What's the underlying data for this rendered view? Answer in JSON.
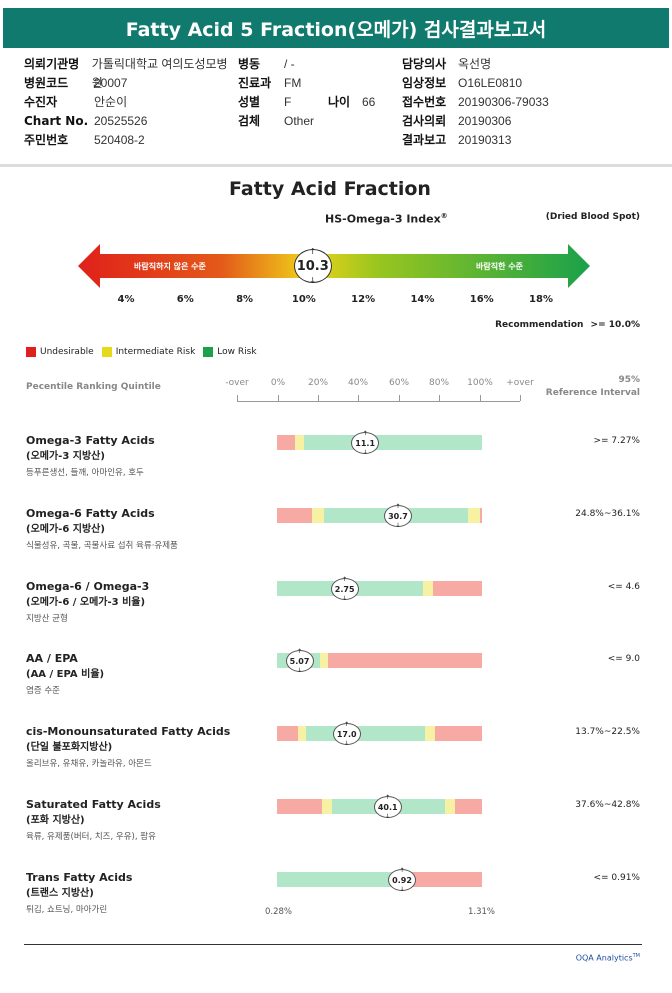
{
  "report_title": "Fatty Acid 5 Fraction(오메가) 검사결과보고서",
  "patient_info": {
    "left": [
      {
        "key": "의뢰기관명",
        "value": "가톨릭대학교 여의도성모병원"
      },
      {
        "key": "병원코드",
        "value": "20007"
      },
      {
        "key": "수진자",
        "value": "안순이"
      },
      {
        "key": "Chart No.",
        "value": "20525526"
      },
      {
        "key": "주민번호",
        "value": "520408-2"
      }
    ],
    "middle": [
      {
        "key": "병동",
        "value": "/ -"
      },
      {
        "key": "진료과",
        "value": "FM"
      },
      {
        "key": "성별",
        "value": "F"
      },
      {
        "key": "검체",
        "value": "Other"
      }
    ],
    "age": {
      "key": "나이",
      "value": "66"
    },
    "right": [
      {
        "key": "담당의사",
        "value": "옥선명"
      },
      {
        "key": "임상정보",
        "value": "O16LE0810"
      },
      {
        "key": "접수번호",
        "value": "20190306-79033"
      },
      {
        "key": "검사의뢰",
        "value": "20190306"
      },
      {
        "key": "결과보고",
        "value": "20190313"
      }
    ]
  },
  "section_title": "Fatty Acid Fraction",
  "index_title": "HS-Omega-3 Index",
  "index_sup": "®",
  "specimen": "(Dried Blood Spot)",
  "index_gauge": {
    "left_label": "바람직하지 않은 수준",
    "right_label": "바람직한 수준",
    "value": "10.3",
    "value_num": 10.3,
    "scale_min": 4,
    "scale_max": 18,
    "ticks": [
      "4%",
      "6%",
      "8%",
      "10%",
      "12%",
      "14%",
      "16%",
      "18%"
    ]
  },
  "recommendation": {
    "label": "Recommendation",
    "value": ">= 10.0%"
  },
  "legend": [
    {
      "label": "Undesirable",
      "color": "#e0201a"
    },
    {
      "label": "Intermediate Risk",
      "color": "#e6d81a"
    },
    {
      "label": "Low Risk",
      "color": "#1aa14a"
    }
  ],
  "percentile": {
    "title": "Pecentile Ranking Quintile",
    "ticks": [
      "-over",
      "0%",
      "20%",
      "40%",
      "60%",
      "80%",
      "100%",
      "+over"
    ],
    "ref_header_1": "95%",
    "ref_header_2": "Reference Interval"
  },
  "colors": {
    "red": "#f7a9a4",
    "yellow": "#f7f1a3",
    "green": "#b2e6c8",
    "header": "#117a6e"
  },
  "fatty_acids": [
    {
      "name": "Omega-3 Fatty Acids",
      "sub": "(오메가-3 지방산)",
      "desc": "등푸른생선, 들깨, 아마인유, 호두",
      "value": "11.1",
      "value_pos": 0.43,
      "ref": ">= 7.27%",
      "segments": [
        {
          "c": "red",
          "w": 0.09
        },
        {
          "c": "yellow",
          "w": 0.04
        },
        {
          "c": "green",
          "w": 0.87
        }
      ]
    },
    {
      "name": "Omega-6 Fatty Acids",
      "sub": "(오메가-6 지방산)",
      "desc": "식물성유, 곡물, 곡물사료 섭취 육류·유제품",
      "value": "30.7",
      "value_pos": 0.59,
      "ref": "24.8%~36.1%",
      "segments": [
        {
          "c": "red",
          "w": 0.17
        },
        {
          "c": "yellow",
          "w": 0.06
        },
        {
          "c": "green",
          "w": 0.7
        },
        {
          "c": "yellow",
          "w": 0.06
        },
        {
          "c": "red",
          "w": 0.01
        }
      ]
    },
    {
      "name": "Omega-6 / Omega-3",
      "sub": "(오메가-6 / 오메가-3 비율)",
      "desc": "지방산 균형",
      "value": "2.75",
      "value_pos": 0.33,
      "ref": "<= 4.6",
      "segments": [
        {
          "c": "green",
          "w": 0.71
        },
        {
          "c": "yellow",
          "w": 0.05
        },
        {
          "c": "red",
          "w": 0.24
        }
      ]
    },
    {
      "name": "AA / EPA",
      "sub": "(AA / EPA 비율)",
      "desc": "염증 수준",
      "value": "5.07",
      "value_pos": 0.11,
      "ref": "<= 9.0",
      "segments": [
        {
          "c": "green",
          "w": 0.21
        },
        {
          "c": "yellow",
          "w": 0.04
        },
        {
          "c": "red",
          "w": 0.75
        }
      ]
    },
    {
      "name": "cis-Monounsaturated Fatty Acids",
      "sub": "(단일 불포화지방산)",
      "desc": "올리브유, 유채유, 카놀라유, 아몬드",
      "value": "17.0",
      "value_pos": 0.34,
      "ref": "13.7%~22.5%",
      "segments": [
        {
          "c": "red",
          "w": 0.1
        },
        {
          "c": "yellow",
          "w": 0.04
        },
        {
          "c": "green",
          "w": 0.58
        },
        {
          "c": "yellow",
          "w": 0.05
        },
        {
          "c": "red",
          "w": 0.23
        }
      ]
    },
    {
      "name": "Saturated Fatty Acids",
      "sub": "(포화 지방산)",
      "desc": "육류, 유제품(버터, 치즈, 우유), 팜유",
      "value": "40.1",
      "value_pos": 0.54,
      "ref": "37.6%~42.8%",
      "segments": [
        {
          "c": "red",
          "w": 0.22
        },
        {
          "c": "yellow",
          "w": 0.05
        },
        {
          "c": "green",
          "w": 0.55
        },
        {
          "c": "yellow",
          "w": 0.05
        },
        {
          "c": "red",
          "w": 0.13
        }
      ]
    },
    {
      "name": "Trans Fatty Acids",
      "sub": "(트랜스 지방산)",
      "desc": "튀김, 쇼트닝, 마아가린",
      "value": "0.92",
      "value_pos": 0.61,
      "ref": "<= 0.91%",
      "segments": [
        {
          "c": "green",
          "w": 0.56
        },
        {
          "c": "yellow",
          "w": 0.06
        },
        {
          "c": "red",
          "w": 0.38
        }
      ]
    }
  ],
  "trans_range": {
    "min": "0.28%",
    "max": "1.31%"
  },
  "footer_brand": "OQA Analytics",
  "footer_tm": "TM"
}
